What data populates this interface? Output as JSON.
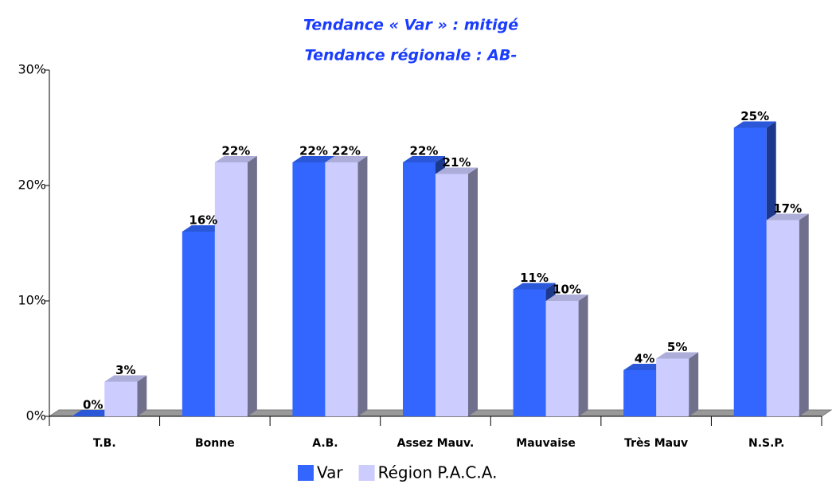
{
  "chart_data": {
    "type": "bar3d",
    "title": "Tendance « Var » : mitigé",
    "subtitle": "Tendance régionale : AB-",
    "categories": [
      "T.B.",
      "Bonne",
      "A.B.",
      "Assez Mauv.",
      "Mauvaise",
      "Très Mauv",
      "N.S.P."
    ],
    "series": [
      {
        "name": "Var",
        "color": "#3366ff",
        "values": [
          0,
          16,
          22,
          22,
          11,
          4,
          25
        ],
        "value_labels": [
          "0%",
          "16%",
          "22%",
          "22%",
          "11%",
          "4%",
          "25%"
        ]
      },
      {
        "name": "Région P.A.C.A.",
        "color": "#ccccff",
        "values": [
          3,
          22,
          22,
          21,
          10,
          5,
          17
        ],
        "value_labels": [
          "3%",
          "22%",
          "22%",
          "21%",
          "10%",
          "5%",
          "17%"
        ]
      }
    ],
    "ylim": [
      0,
      30
    ],
    "yticks": [
      {
        "value": 0,
        "label": "0%"
      },
      {
        "value": 10,
        "label": "10%"
      },
      {
        "value": 20,
        "label": "20%"
      },
      {
        "value": 30,
        "label": "30%"
      }
    ],
    "legend": "bottom"
  }
}
